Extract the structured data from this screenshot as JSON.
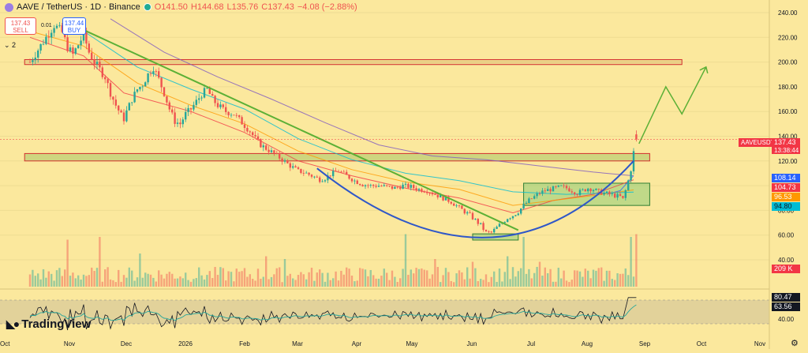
{
  "header": {
    "symbol": "AAVE / TetherUS · 1D · Binance",
    "o": "O141.50",
    "h": "H144.68",
    "l": "L135.76",
    "c": "C137.43",
    "change": "−4.08 (−2.88%)"
  },
  "trade_buttons": {
    "sell_price": "137.43",
    "sell_label": "SELL",
    "spread": "0.01",
    "buy_price": "137.44",
    "buy_label": "BUY",
    "lots": "2"
  },
  "brand": "TradingView",
  "price_tags": {
    "symbol": "AAVEUSDT",
    "last": "137.43",
    "countdown": "13:38:44",
    "ma1": "108.14",
    "ma2": "104.73",
    "ma3": "96.53",
    "ma4": "94.80",
    "volume": "209 K",
    "osc1": "80.47",
    "osc2": "63.56"
  },
  "colors": {
    "background": "#fbe89d",
    "up": "#26a69a",
    "down": "#ef5350",
    "trend": "#5cb036",
    "arc": "#2f57c8",
    "ma_blue": "#2962ff",
    "ma_red": "#f23645",
    "ma_orange": "#ff9800",
    "ma_cyan": "#00bcd4",
    "ma_purple": "#7e57c2"
  },
  "chart_data": {
    "type": "candlestick",
    "y_axis_labels": [
      "240.00",
      "220.00",
      "200.00",
      "180.00",
      "160.00",
      "140.00",
      "120.00",
      "100.00",
      "80.00",
      "60.00",
      "40.00"
    ],
    "y_ticks": [
      240,
      220,
      200,
      180,
      160,
      140,
      120,
      100,
      80,
      60,
      40
    ],
    "ylim": [
      40,
      250
    ],
    "osc_axis_labels": [
      "40.00"
    ],
    "x_axis_labels": [
      "Oct",
      "Nov",
      "Dec",
      "2026",
      "Feb",
      "Mar",
      "Apr",
      "May",
      "Jun",
      "Jul",
      "Aug",
      "Sep",
      "Oct",
      "Nov"
    ],
    "path": [
      [
        0,
        200
      ],
      [
        3,
        210
      ],
      [
        6,
        220
      ],
      [
        9,
        230
      ],
      [
        12,
        224
      ],
      [
        14,
        212
      ],
      [
        16,
        206
      ],
      [
        18,
        214
      ],
      [
        20,
        222
      ],
      [
        22,
        208
      ],
      [
        24,
        200
      ],
      [
        26,
        194
      ],
      [
        28,
        188
      ],
      [
        30,
        175
      ],
      [
        32,
        165
      ],
      [
        34,
        157
      ],
      [
        35,
        154
      ],
      [
        36,
        160
      ],
      [
        38,
        170
      ],
      [
        40,
        178
      ],
      [
        42,
        182
      ],
      [
        44,
        190
      ],
      [
        46,
        196
      ],
      [
        48,
        186
      ],
      [
        50,
        175
      ],
      [
        52,
        162
      ],
      [
        54,
        152
      ],
      [
        56,
        150
      ],
      [
        58,
        158
      ],
      [
        60,
        162
      ],
      [
        62,
        168
      ],
      [
        64,
        174
      ],
      [
        66,
        178
      ],
      [
        68,
        170
      ],
      [
        70,
        165
      ],
      [
        73,
        160
      ],
      [
        76,
        158
      ],
      [
        79,
        151
      ],
      [
        82,
        144
      ],
      [
        84,
        138
      ],
      [
        86,
        133
      ],
      [
        88,
        130
      ],
      [
        91,
        126
      ],
      [
        94,
        121
      ],
      [
        97,
        116
      ],
      [
        100,
        112
      ],
      [
        103,
        110
      ],
      [
        106,
        107
      ],
      [
        108,
        105
      ],
      [
        110,
        106
      ],
      [
        112,
        109
      ],
      [
        115,
        112
      ],
      [
        118,
        108
      ],
      [
        121,
        104
      ],
      [
        124,
        101
      ],
      [
        127,
        100
      ],
      [
        130,
        100
      ],
      [
        133,
        99
      ],
      [
        136,
        98
      ],
      [
        139,
        100
      ],
      [
        142,
        99
      ],
      [
        145,
        97
      ],
      [
        148,
        96
      ],
      [
        151,
        93
      ],
      [
        154,
        90
      ],
      [
        157,
        87
      ],
      [
        160,
        82
      ],
      [
        162,
        79
      ],
      [
        164,
        76
      ],
      [
        166,
        72
      ],
      [
        168,
        68
      ],
      [
        170,
        62
      ],
      [
        172,
        62
      ],
      [
        174,
        66
      ],
      [
        176,
        70
      ],
      [
        178,
        74
      ],
      [
        180,
        76
      ],
      [
        182,
        79
      ],
      [
        184,
        84
      ],
      [
        186,
        88
      ],
      [
        188,
        91
      ],
      [
        190,
        94
      ],
      [
        192,
        96
      ],
      [
        194,
        97
      ],
      [
        196,
        98
      ],
      [
        198,
        99
      ],
      [
        200,
        98
      ],
      [
        202,
        96
      ],
      [
        204,
        94
      ],
      [
        206,
        96
      ],
      [
        208,
        98
      ],
      [
        210,
        97
      ],
      [
        212,
        95
      ],
      [
        214,
        94
      ],
      [
        216,
        93
      ],
      [
        218,
        92
      ],
      [
        220,
        91
      ],
      [
        221,
        89
      ],
      [
        222,
        96
      ],
      [
        223,
        104
      ],
      [
        224,
        113
      ],
      [
        225,
        127
      ],
      [
        226,
        138
      ]
    ],
    "volume_spikes": {
      "14": 0.85,
      "26": 0.9,
      "41": 0.6,
      "88": 0.55,
      "95": 0.5,
      "140": 0.95,
      "151": 0.5,
      "165": 0.45,
      "178": 0.55,
      "184": 0.9,
      "190": 0.45,
      "224": 0.9,
      "226": 0.95
    },
    "ma_lines": [
      {
        "color": "#2962ff",
        "points": [
          [
            215,
            93
          ],
          [
            220,
            96
          ],
          [
            225,
            108.14
          ]
        ]
      },
      {
        "color": "#f23645",
        "points": [
          [
            0,
            220
          ],
          [
            20,
            205
          ],
          [
            35,
            175
          ],
          [
            60,
            160
          ],
          [
            80,
            143
          ],
          [
            100,
            120
          ],
          [
            120,
            108
          ],
          [
            140,
            98
          ],
          [
            160,
            90
          ],
          [
            180,
            78
          ],
          [
            195,
            88
          ],
          [
            210,
            93
          ],
          [
            225,
            104.73
          ]
        ]
      },
      {
        "color": "#ff9800",
        "points": [
          [
            0,
            225
          ],
          [
            20,
            213
          ],
          [
            40,
            183
          ],
          [
            60,
            165
          ],
          [
            80,
            150
          ],
          [
            100,
            128
          ],
          [
            120,
            113
          ],
          [
            140,
            103
          ],
          [
            160,
            97
          ],
          [
            180,
            84
          ],
          [
            195,
            88
          ],
          [
            210,
            92
          ],
          [
            225,
            96.53
          ]
        ]
      },
      {
        "color": "#00bcd4",
        "points": [
          [
            20,
            225
          ],
          [
            40,
            196
          ],
          [
            60,
            178
          ],
          [
            80,
            162
          ],
          [
            100,
            138
          ],
          [
            120,
            121
          ],
          [
            140,
            110
          ],
          [
            160,
            104
          ],
          [
            180,
            95
          ],
          [
            200,
            93
          ],
          [
            225,
            94.8
          ]
        ]
      },
      {
        "color": "#7e57c2",
        "points": [
          [
            30,
            235
          ],
          [
            50,
            208
          ],
          [
            70,
            188
          ],
          [
            90,
            170
          ],
          [
            110,
            151
          ],
          [
            130,
            133
          ],
          [
            150,
            124
          ],
          [
            170,
            121
          ],
          [
            190,
            116
          ],
          [
            210,
            111
          ],
          [
            225,
            108
          ]
        ]
      }
    ],
    "annotations": {
      "resistance_zone": {
        "x0": -2,
        "x1": 243,
        "y0": 198,
        "y1": 202
      },
      "support_zone": {
        "x0": -2,
        "x1": 231,
        "y0": 120,
        "y1": 126
      },
      "base_box": {
        "x0": 184,
        "x1": 231,
        "y0": 84,
        "y1": 102
      },
      "low_box": {
        "x0": 165,
        "x1": 182,
        "y0": 56,
        "y1": 61
      },
      "downtrend_line": [
        [
          20,
          226
        ],
        [
          182,
          64
        ]
      ],
      "arc": [
        [
          107,
          114
        ],
        [
          170,
          58
        ],
        [
          225,
          120
        ]
      ],
      "projection": [
        [
          227,
          134
        ],
        [
          237,
          180
        ],
        [
          243,
          158
        ],
        [
          252,
          196
        ]
      ]
    },
    "oscillator": {
      "value_tags": [
        "80.47",
        "63.56"
      ],
      "band": [
        52,
        60
      ]
    }
  }
}
